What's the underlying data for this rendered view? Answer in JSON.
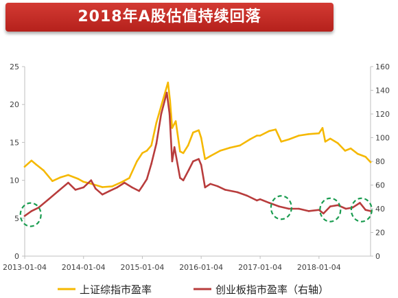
{
  "title": "2018年A股估值持续回落",
  "colors": {
    "banner": "#c8302a",
    "sh_line": "#f5b800",
    "cy_line": "#b83c3c",
    "circle": "#1a9c50"
  },
  "chart_data": {
    "type": "line",
    "title": "2018年A股估值持续回落",
    "x_ticks": [
      "2013-01-04",
      "2014-01-04",
      "2015-01-04",
      "2016-01-04",
      "2017-01-04",
      "2018-01-04"
    ],
    "x_range": [
      "2013-01-04",
      "2018-11-20"
    ],
    "y_left": {
      "range": [
        0,
        25
      ],
      "ticks": [
        0,
        5,
        10,
        15,
        20,
        25
      ]
    },
    "y_right": {
      "range": [
        0,
        160
      ],
      "ticks": [
        0,
        20,
        40,
        60,
        80,
        100,
        120,
        140,
        160
      ]
    },
    "grid": false,
    "legend_position": "bottom",
    "series": [
      {
        "name": "上证综指市盈率",
        "axis": "left",
        "color": "#f5b800",
        "points": [
          [
            "2013-01-04",
            11.8
          ],
          [
            "2013-02-15",
            12.6
          ],
          [
            "2013-03-15",
            12.1
          ],
          [
            "2013-05-01",
            11.3
          ],
          [
            "2013-06-25",
            9.9
          ],
          [
            "2013-08-15",
            10.4
          ],
          [
            "2013-10-01",
            10.7
          ],
          [
            "2013-12-01",
            10.2
          ],
          [
            "2014-01-04",
            9.8
          ],
          [
            "2014-03-01",
            9.5
          ],
          [
            "2014-05-01",
            9.1
          ],
          [
            "2014-07-01",
            9.2
          ],
          [
            "2014-09-01",
            9.8
          ],
          [
            "2014-10-15",
            10.3
          ],
          [
            "2014-12-01",
            12.5
          ],
          [
            "2015-01-04",
            13.6
          ],
          [
            "2015-02-01",
            13.9
          ],
          [
            "2015-03-01",
            14.6
          ],
          [
            "2015-04-01",
            17.6
          ],
          [
            "2015-05-01",
            19.8
          ],
          [
            "2015-06-12",
            22.9
          ],
          [
            "2015-06-25",
            20.5
          ],
          [
            "2015-07-08",
            16.9
          ],
          [
            "2015-07-30",
            17.8
          ],
          [
            "2015-08-26",
            13.8
          ],
          [
            "2015-09-15",
            13.6
          ],
          [
            "2015-10-15",
            14.6
          ],
          [
            "2015-11-15",
            16.3
          ],
          [
            "2015-12-20",
            16.6
          ],
          [
            "2016-01-04",
            15.6
          ],
          [
            "2016-01-28",
            12.8
          ],
          [
            "2016-03-01",
            13.2
          ],
          [
            "2016-05-01",
            13.9
          ],
          [
            "2016-07-01",
            14.3
          ],
          [
            "2016-09-01",
            14.6
          ],
          [
            "2016-11-01",
            15.4
          ],
          [
            "2016-12-15",
            15.9
          ],
          [
            "2017-01-04",
            15.9
          ],
          [
            "2017-03-01",
            16.5
          ],
          [
            "2017-04-10",
            16.7
          ],
          [
            "2017-05-15",
            15.1
          ],
          [
            "2017-07-01",
            15.4
          ],
          [
            "2017-09-01",
            15.9
          ],
          [
            "2017-11-01",
            16.1
          ],
          [
            "2018-01-04",
            16.2
          ],
          [
            "2018-01-26",
            16.9
          ],
          [
            "2018-02-12",
            15.1
          ],
          [
            "2018-03-15",
            15.5
          ],
          [
            "2018-05-01",
            14.9
          ],
          [
            "2018-06-15",
            13.9
          ],
          [
            "2018-07-20",
            14.2
          ],
          [
            "2018-09-01",
            13.5
          ],
          [
            "2018-10-20",
            13.1
          ],
          [
            "2018-11-20",
            12.4
          ]
        ]
      },
      {
        "name": "创业板指市盈率（右轴）",
        "axis": "right",
        "color": "#b83c3c",
        "points": [
          [
            "2013-01-04",
            34
          ],
          [
            "2013-02-15",
            38
          ],
          [
            "2013-04-01",
            41
          ],
          [
            "2013-06-01",
            48
          ],
          [
            "2013-08-01",
            55
          ],
          [
            "2013-10-01",
            62
          ],
          [
            "2013-11-15",
            56
          ],
          [
            "2014-01-04",
            58
          ],
          [
            "2014-02-20",
            64
          ],
          [
            "2014-03-20",
            57
          ],
          [
            "2014-05-01",
            52
          ],
          [
            "2014-06-15",
            55
          ],
          [
            "2014-08-01",
            58
          ],
          [
            "2014-09-15",
            62
          ],
          [
            "2014-11-01",
            58
          ],
          [
            "2014-12-15",
            55
          ],
          [
            "2015-01-04",
            59
          ],
          [
            "2015-02-01",
            65
          ],
          [
            "2015-03-01",
            78
          ],
          [
            "2015-04-01",
            95
          ],
          [
            "2015-05-01",
            120
          ],
          [
            "2015-06-05",
            138
          ],
          [
            "2015-06-22",
            120
          ],
          [
            "2015-07-08",
            80
          ],
          [
            "2015-07-22",
            92
          ],
          [
            "2015-08-26",
            66
          ],
          [
            "2015-09-15",
            64
          ],
          [
            "2015-10-20",
            73
          ],
          [
            "2015-11-15",
            80
          ],
          [
            "2015-12-20",
            82
          ],
          [
            "2016-01-04",
            77
          ],
          [
            "2016-01-28",
            58
          ],
          [
            "2016-03-01",
            61
          ],
          [
            "2016-04-15",
            59
          ],
          [
            "2016-06-01",
            56
          ],
          [
            "2016-08-15",
            54
          ],
          [
            "2016-10-15",
            51
          ],
          [
            "2016-12-15",
            47
          ],
          [
            "2017-01-04",
            48
          ],
          [
            "2017-03-01",
            45
          ],
          [
            "2017-05-01",
            42
          ],
          [
            "2017-07-01",
            40
          ],
          [
            "2017-09-01",
            40
          ],
          [
            "2017-11-01",
            38
          ],
          [
            "2018-01-04",
            39
          ],
          [
            "2018-02-01",
            36
          ],
          [
            "2018-03-15",
            42
          ],
          [
            "2018-05-01",
            43
          ],
          [
            "2018-06-20",
            40
          ],
          [
            "2018-08-01",
            41
          ],
          [
            "2018-09-15",
            45
          ],
          [
            "2018-10-20",
            39
          ],
          [
            "2018-11-20",
            38
          ]
        ]
      }
    ],
    "annotations": [
      {
        "type": "dashed-circle",
        "x": "2013-02-10",
        "axis": "right",
        "y": 35
      },
      {
        "type": "dashed-circle",
        "x": "2017-05-15",
        "axis": "right",
        "y": 41
      },
      {
        "type": "dashed-circle",
        "x": "2018-03-15",
        "axis": "right",
        "y": 39
      },
      {
        "type": "dashed-circle",
        "x": "2018-09-25",
        "axis": "right",
        "y": 39
      }
    ]
  }
}
